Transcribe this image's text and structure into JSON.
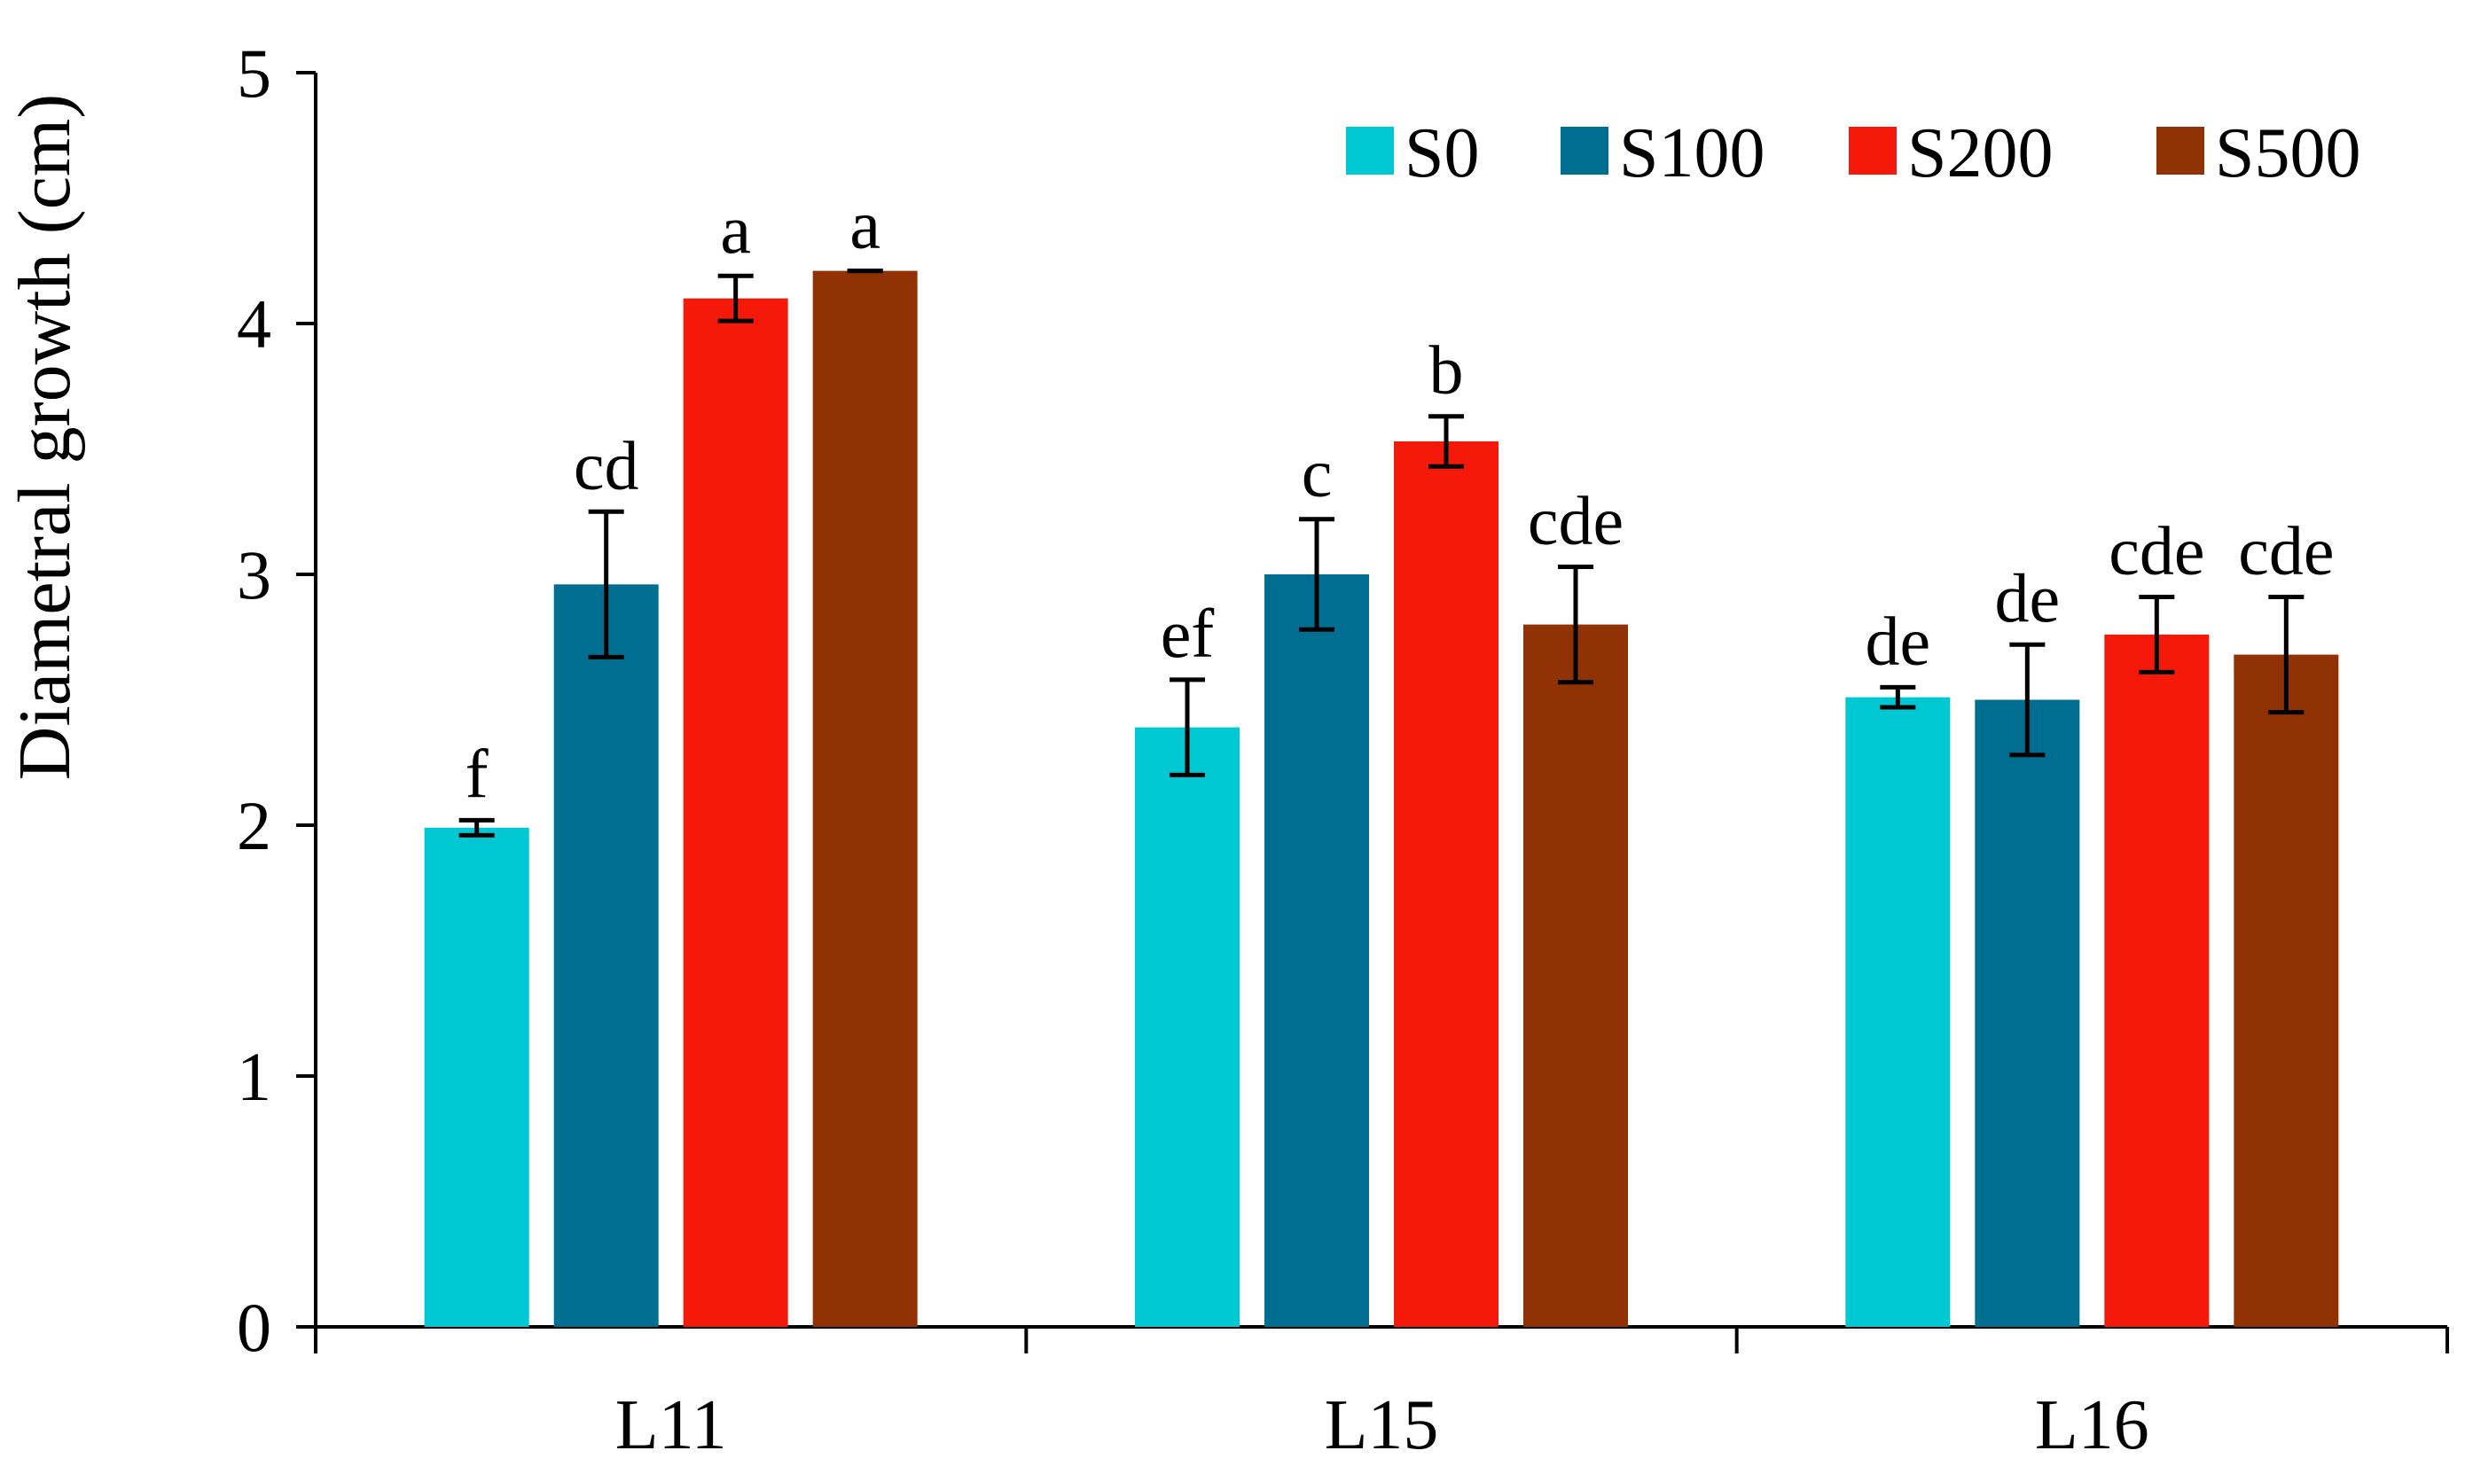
{
  "chart_data": {
    "type": "bar",
    "title": "",
    "xlabel": "",
    "ylabel": "Diametral growth (cm)",
    "ylim": [
      0,
      5
    ],
    "yticks": [
      "0",
      "1",
      "2",
      "3",
      "4",
      "5"
    ],
    "categories": [
      "L11",
      "L15",
      "L16"
    ],
    "legend_position": "top-right",
    "series": [
      {
        "name": "S0",
        "color": "#00C8D2",
        "values": [
          1.99,
          2.39,
          2.51
        ],
        "errors": [
          0.03,
          0.19,
          0.04
        ],
        "letters": [
          "f",
          "ef",
          "de"
        ]
      },
      {
        "name": "S100",
        "color": "#006E91",
        "values": [
          2.96,
          3.0,
          2.5
        ],
        "errors": [
          0.29,
          0.22,
          0.22
        ],
        "letters": [
          "cd",
          "c",
          "de"
        ]
      },
      {
        "name": "S200",
        "color": "#F5190A",
        "values": [
          4.1,
          3.53,
          2.76
        ],
        "errors": [
          0.09,
          0.1,
          0.15
        ],
        "letters": [
          "a",
          "b",
          "cde"
        ]
      },
      {
        "name": "S500",
        "color": "#913205",
        "values": [
          4.21,
          2.8,
          2.68
        ],
        "errors": [
          0.0,
          0.23,
          0.23
        ],
        "letters": [
          "a",
          "cde",
          "cde"
        ]
      }
    ]
  }
}
